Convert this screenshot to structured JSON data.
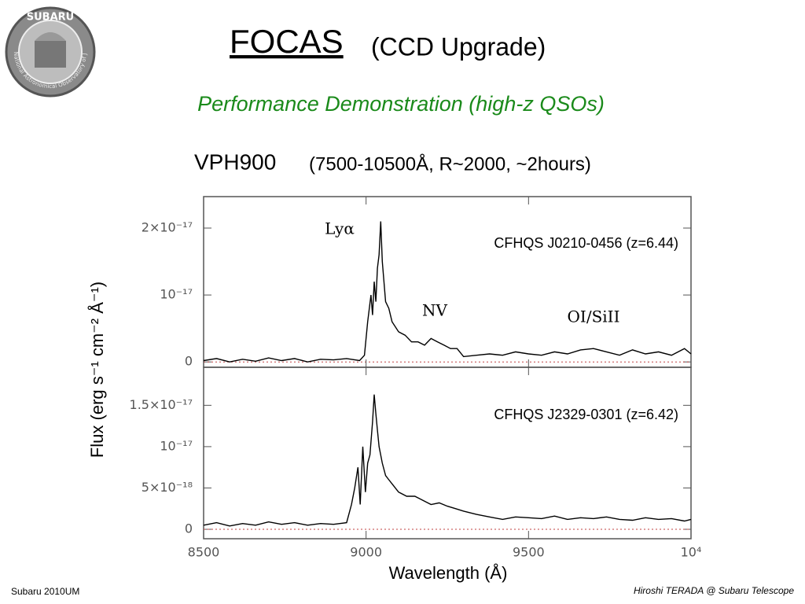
{
  "slide": {
    "logo": "SUBARU",
    "logo_ring": "National Astronomical Observatory of Japan",
    "title": "FOCAS",
    "title_rest": "(CCD Upgrade)",
    "subtitle": "Performance Demonstration (high-z QSOs)",
    "heading": "VPH900",
    "heading_rest": "(7500-10500Å, R~2000, ~2hours)",
    "ylabel": "Flux (erg s⁻¹ cm⁻² Å⁻¹)",
    "footer_left": "Subaru 2010UM",
    "footer_right": "Hiroshi TERADA @ Subaru Telescope"
  },
  "chart_data": [
    {
      "type": "line",
      "title": "CFHQS J0210-0456  (z=6.44)",
      "annotations": [
        "Lyα",
        "NV",
        "OI/SiII"
      ],
      "x": [
        8500,
        8540,
        8580,
        8620,
        8660,
        8700,
        8740,
        8780,
        8820,
        8860,
        8900,
        8940,
        8980,
        8995,
        9005,
        9015,
        9020,
        9025,
        9030,
        9035,
        9040,
        9045,
        9050,
        9055,
        9060,
        9070,
        9080,
        9100,
        9120,
        9140,
        9160,
        9180,
        9200,
        9220,
        9240,
        9260,
        9280,
        9300,
        9340,
        9380,
        9420,
        9460,
        9500,
        9540,
        9580,
        9620,
        9660,
        9700,
        9740,
        9780,
        9820,
        9860,
        9900,
        9940,
        9980,
        10000
      ],
      "values": [
        2e-19,
        5e-19,
        0.0,
        4e-19,
        1e-19,
        6e-19,
        2e-19,
        5e-19,
        0.0,
        4e-19,
        3e-19,
        5e-19,
        2e-19,
        1e-18,
        6e-18,
        1e-17,
        7e-18,
        1.2e-17,
        9e-18,
        1.4e-17,
        1.6e-17,
        2.1e-17,
        1.5e-17,
        1.2e-17,
        9e-18,
        8e-18,
        6e-18,
        4.5e-18,
        4e-18,
        3e-18,
        3e-18,
        2.5e-18,
        3.5e-18,
        3e-18,
        2.5e-18,
        2e-18,
        2e-18,
        8e-19,
        1e-18,
        1.2e-18,
        1e-18,
        1.5e-18,
        1.2e-18,
        1e-18,
        1.5e-18,
        1.2e-18,
        1.8e-18,
        2e-18,
        1.5e-18,
        1e-18,
        1.8e-18,
        1.2e-18,
        1.5e-18,
        1e-18,
        2e-18,
        1.2e-18
      ],
      "color": "#000000",
      "xlim": [
        8500,
        10000
      ],
      "xticks": [
        8500,
        9000,
        9500,
        10000
      ],
      "ylim": [
        -8e-19,
        2.47e-17
      ],
      "yticks": [
        0,
        {
          "value": 1e-17,
          "label": "10⁻¹⁷"
        },
        {
          "value": 2e-17,
          "label": "2×10⁻¹⁷"
        }
      ]
    },
    {
      "type": "line",
      "title": "CFHQS J2329-0301  (z=6.42)",
      "xlabel": "Wavelength (Å)",
      "x": [
        8500,
        8540,
        8580,
        8620,
        8660,
        8700,
        8740,
        8780,
        8820,
        8860,
        8900,
        8940,
        8955,
        8965,
        8975,
        8982,
        8990,
        8998,
        9005,
        9012,
        9020,
        9025,
        9030,
        9035,
        9040,
        9050,
        9060,
        9070,
        9080,
        9100,
        9125,
        9150,
        9175,
        9200,
        9225,
        9250,
        9275,
        9300,
        9340,
        9380,
        9420,
        9460,
        9500,
        9540,
        9580,
        9620,
        9660,
        9700,
        9740,
        9780,
        9820,
        9860,
        9900,
        9940,
        9980,
        10000
      ],
      "values": [
        5e-19,
        8e-19,
        4e-19,
        7e-19,
        5e-19,
        9e-19,
        6e-19,
        8e-19,
        5e-19,
        7e-19,
        6e-19,
        8e-19,
        3e-18,
        5e-18,
        7.5e-18,
        3e-18,
        1e-17,
        4.5e-18,
        8e-18,
        9e-18,
        1.3e-17,
        1.63e-17,
        1.4e-17,
        1.2e-17,
        1e-17,
        8e-18,
        6.5e-18,
        6e-18,
        5.5e-18,
        4.5e-18,
        4e-18,
        4e-18,
        3.5e-18,
        3e-18,
        3.2e-18,
        2.8e-18,
        2.5e-18,
        2.2e-18,
        1.8e-18,
        1.5e-18,
        1.2e-18,
        1.5e-18,
        1.4e-18,
        1.3e-18,
        1.6e-18,
        1.2e-18,
        1.4e-18,
        1.3e-18,
        1.5e-18,
        1.2e-18,
        1.1e-18,
        1.4e-18,
        1.2e-18,
        1.3e-18,
        1e-18,
        1.2e-18
      ],
      "color": "#000000",
      "xlim": [
        8500,
        10000
      ],
      "xticks": [
        8500,
        9000,
        9500,
        {
          "value": 10000,
          "label": "10⁴"
        }
      ],
      "ylim": [
        -1.14e-18,
        1.96e-17
      ],
      "yticks": [
        0,
        {
          "value": 5e-18,
          "label": "5×10⁻¹⁸"
        },
        {
          "value": 1e-17,
          "label": "10⁻¹⁷"
        },
        {
          "value": 1.5e-17,
          "label": "1.5×10⁻¹⁷"
        }
      ]
    }
  ]
}
